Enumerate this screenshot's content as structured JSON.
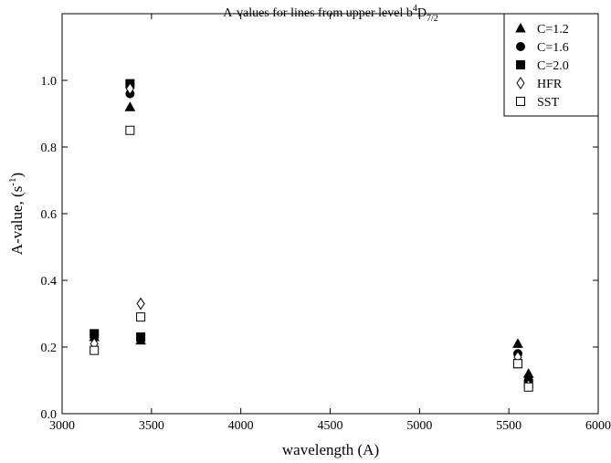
{
  "chart_data": {
    "type": "scatter",
    "title_parts": [
      "A-values for lines from upper level b",
      "4",
      "D",
      "7/2"
    ],
    "x_label": "wavelength (A)",
    "y_label_parts": [
      "A-value, (s",
      "-1",
      ")"
    ],
    "xlim": [
      3000,
      6000
    ],
    "xticks": [
      3000,
      3500,
      4000,
      4500,
      5000,
      5500,
      6000
    ],
    "ylim": [
      0,
      1.2
    ],
    "yticks": [
      {
        "value": 0,
        "label": "0.0"
      },
      0.2,
      0.4,
      0.6,
      0.8,
      {
        "value": 1,
        "label": "1.0"
      }
    ],
    "legend": "top-right",
    "series": [
      {
        "name": "C=1.2",
        "color": "#000000",
        "marker": "triangle",
        "filled": true,
        "x": [
          3180,
          3380,
          3440,
          5550,
          5610
        ],
        "values": [
          0.23,
          0.92,
          0.22,
          0.21,
          0.12
        ]
      },
      {
        "name": "C=1.6",
        "color": "#000000",
        "marker": "circle",
        "filled": true,
        "x": [
          3180,
          3380,
          3440,
          5550,
          5610
        ],
        "values": [
          0.235,
          0.96,
          0.225,
          0.18,
          0.1
        ]
      },
      {
        "name": "C=2.0",
        "color": "#000000",
        "marker": "square",
        "filled": true,
        "x": [
          3180,
          3380,
          3440,
          5550,
          5610
        ],
        "values": [
          0.24,
          0.99,
          0.23,
          0.15,
          0.09
        ]
      },
      {
        "name": "HFR",
        "color": "#000000",
        "marker": "diamond",
        "filled": false,
        "x": [
          3180,
          3380,
          3440,
          5550,
          5610
        ],
        "values": [
          0.21,
          0.975,
          0.33,
          0.17,
          0.085
        ]
      },
      {
        "name": "SST",
        "color": "#000000",
        "marker": "square",
        "filled": false,
        "x": [
          3180,
          3380,
          3440,
          5550,
          5610
        ],
        "values": [
          0.19,
          0.85,
          0.29,
          0.15,
          0.08
        ]
      }
    ]
  }
}
